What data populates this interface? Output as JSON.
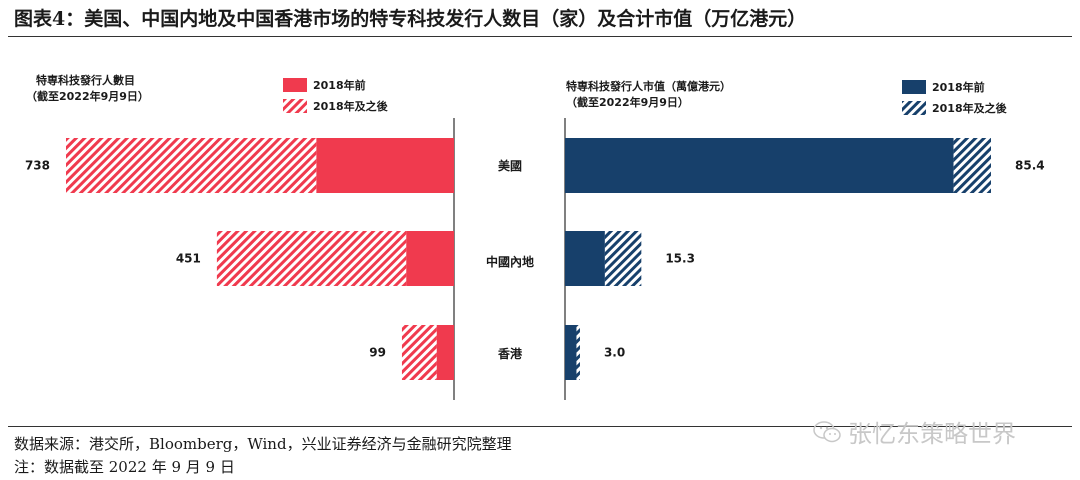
{
  "title": "图表4：美国、中国内地及中国香港市场的特专科技发行人数目（家）及合计市值（万亿港元）",
  "source": "数据来源：港交所，Bloomberg，Wind，兴业证券经济与金融研究院整理",
  "note": "注：数据截至 2022 年 9 月 9 日",
  "watermark": "张忆东策略世界",
  "colors": {
    "left_solid": "#f03a4e",
    "right_solid": "#17406b",
    "axis": "#000000"
  },
  "icons": {
    "watermark": "wechat-icon"
  },
  "chart_data": [
    {
      "type": "bar",
      "orientation": "horizontal",
      "stacked": true,
      "direction": "leftward",
      "title_lines": [
        "特専科技發行人數目",
        "（截至2022年9月9日）"
      ],
      "categories": [
        "美國",
        "中國內地",
        "香港"
      ],
      "series": [
        {
          "name": "2018年前",
          "values": [
            262,
            91,
            33
          ],
          "fill": "solid"
        },
        {
          "name": "2018年及之後",
          "values": [
            476,
            360,
            66
          ],
          "fill": "hatched"
        }
      ],
      "totals": [
        738,
        451,
        99
      ],
      "total_labels": [
        "738",
        "451",
        "99"
      ],
      "xlim": [
        0,
        738
      ],
      "legend_position": "top"
    },
    {
      "type": "bar",
      "orientation": "horizontal",
      "stacked": true,
      "direction": "rightward",
      "title_lines": [
        "特専科技發行人市值（萬億港元）",
        "（截至2022年9月9日）"
      ],
      "categories": [
        "美國",
        "中國內地",
        "香港"
      ],
      "series": [
        {
          "name": "2018年前",
          "values": [
            77.9,
            8.0,
            2.3
          ],
          "fill": "solid"
        },
        {
          "name": "2018年及之後",
          "values": [
            7.5,
            7.3,
            0.7
          ],
          "fill": "hatched"
        }
      ],
      "totals": [
        85.4,
        15.3,
        3.0
      ],
      "total_labels": [
        "85.4",
        "15.3",
        "3.0"
      ],
      "xlim": [
        0,
        85.4
      ],
      "legend_position": "top-right"
    }
  ]
}
